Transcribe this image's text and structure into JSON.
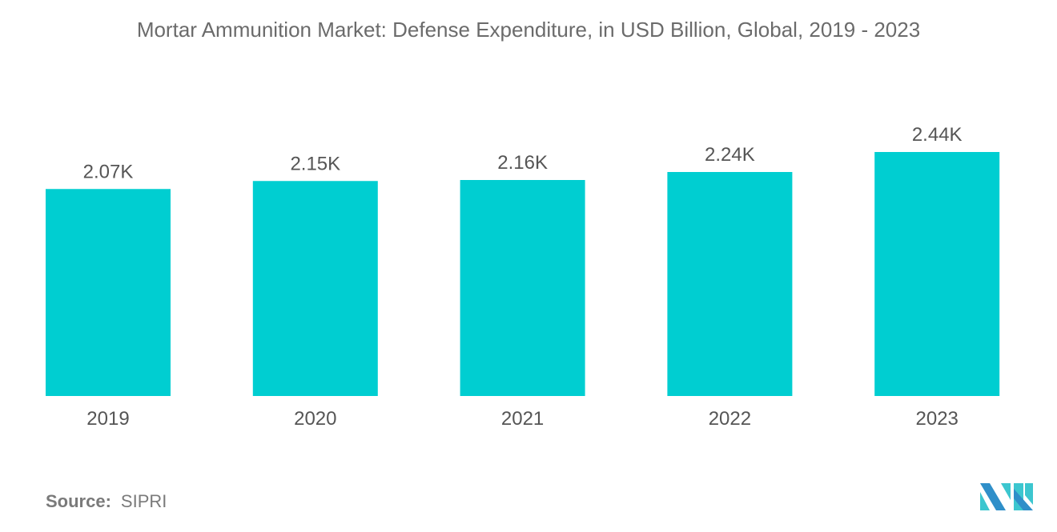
{
  "chart_data": {
    "type": "bar",
    "title": "Mortar Ammunition Market: Defense Expenditure, in USD Billion, Global, 2019 - 2023",
    "categories": [
      "2019",
      "2020",
      "2021",
      "2022",
      "2023"
    ],
    "values": [
      2.07,
      2.15,
      2.16,
      2.24,
      2.44
    ],
    "data_labels": [
      "2.07K",
      "2.15K",
      "2.16K",
      "2.24K",
      "2.44K"
    ],
    "xlabel": "",
    "ylabel": "",
    "ylim": [
      0,
      2.44
    ],
    "grid": false,
    "bar_color": "#00ced1"
  },
  "source": {
    "label": "Source:",
    "value": "SIPRI"
  },
  "logo": {
    "colors": [
      "#2f8fc9",
      "#3cc6cf"
    ]
  }
}
